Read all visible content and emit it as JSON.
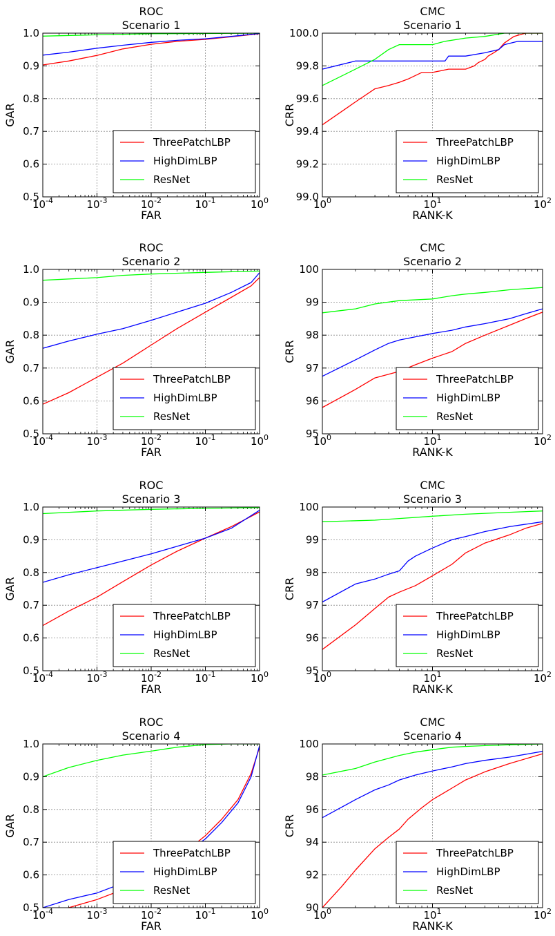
{
  "figure": {
    "colors": {
      "ThreePatchLBP": "#ff0000",
      "HighDimLBP": "#0000ff",
      "ResNet": "#00ff00",
      "grid": "#888888",
      "axes": "#000000"
    }
  },
  "chart_data": [
    {
      "id": "roc1",
      "type": "line",
      "panel": "ROC Scenario 1",
      "title": [
        "ROC",
        "Scenario 1"
      ],
      "xlabel": "FAR",
      "ylabel": "GAR",
      "xscale": "log",
      "xlim": [
        0.0001,
        1
      ],
      "ylim": [
        0.5,
        1.0
      ],
      "xtick_labels": [
        [
          "10",
          "-4"
        ],
        [
          "10",
          "-3"
        ],
        [
          "10",
          "-2"
        ],
        [
          "10",
          "-1"
        ],
        [
          "10",
          "0"
        ]
      ],
      "ytick_labels": [
        "0.5",
        "0.6",
        "0.7",
        "0.8",
        "0.9",
        "1.0"
      ],
      "legend": {
        "position": "lower-right",
        "entries": [
          "ThreePatchLBP",
          "HighDimLBP",
          "ResNet"
        ]
      },
      "grid": true,
      "series": [
        {
          "name": "ThreePatchLBP",
          "color": "#ff0000",
          "x": [
            0.0001,
            0.0003,
            0.001,
            0.003,
            0.01,
            0.03,
            0.1,
            0.3,
            1
          ],
          "y": [
            0.903,
            0.915,
            0.932,
            0.952,
            0.966,
            0.975,
            0.981,
            0.989,
            0.998
          ]
        },
        {
          "name": "HighDimLBP",
          "color": "#0000ff",
          "x": [
            0.0001,
            0.0003,
            0.001,
            0.003,
            0.01,
            0.03,
            0.1,
            0.3,
            1
          ],
          "y": [
            0.933,
            0.942,
            0.954,
            0.963,
            0.972,
            0.978,
            0.983,
            0.99,
            0.999
          ]
        },
        {
          "name": "ResNet",
          "color": "#00ff00",
          "x": [
            0.0001,
            0.001,
            0.01,
            0.1,
            1
          ],
          "y": [
            0.991,
            0.995,
            0.998,
            0.999,
            1.0
          ]
        }
      ]
    },
    {
      "id": "cmc1",
      "type": "line",
      "panel": "CMC Scenario 1",
      "title": [
        "CMC",
        "Scenario 1"
      ],
      "xlabel": "RANK-K",
      "ylabel": "CRR",
      "xscale": "log",
      "xlim": [
        1,
        100
      ],
      "ylim": [
        99.0,
        100.0
      ],
      "xtick_labels": [
        [
          "10",
          "0"
        ],
        [
          "10",
          "1"
        ],
        [
          "10",
          "2"
        ]
      ],
      "ytick_labels": [
        "99.0",
        "99.2",
        "99.4",
        "99.6",
        "99.8",
        "100.0"
      ],
      "legend": {
        "position": "lower-right",
        "entries": [
          "ThreePatchLBP",
          "HighDimLBP",
          "ResNet"
        ]
      },
      "grid": true,
      "series": [
        {
          "name": "ThreePatchLBP",
          "color": "#ff0000",
          "x": [
            1,
            2,
            3,
            4,
            5,
            6,
            8,
            10,
            14,
            20,
            24,
            26,
            30,
            32,
            36,
            40,
            45,
            55,
            70,
            100
          ],
          "y": [
            99.44,
            99.58,
            99.66,
            99.68,
            99.7,
            99.72,
            99.76,
            99.76,
            99.78,
            99.78,
            99.8,
            99.82,
            99.84,
            99.86,
            99.88,
            99.9,
            99.94,
            99.98,
            100.0,
            100.0
          ]
        },
        {
          "name": "HighDimLBP",
          "color": "#0000ff",
          "x": [
            1,
            2,
            3,
            5,
            8,
            13,
            14,
            20,
            30,
            40,
            45,
            60,
            100
          ],
          "y": [
            99.78,
            99.83,
            99.83,
            99.83,
            99.83,
            99.83,
            99.86,
            99.86,
            99.88,
            99.9,
            99.93,
            99.95,
            99.95
          ]
        },
        {
          "name": "ResNet",
          "color": "#00ff00",
          "x": [
            1,
            2,
            3,
            4,
            5,
            10,
            13,
            20,
            30,
            45,
            100
          ],
          "y": [
            99.68,
            99.78,
            99.84,
            99.9,
            99.93,
            99.93,
            99.95,
            99.97,
            99.98,
            100.0,
            100.0
          ]
        }
      ]
    },
    {
      "id": "roc2",
      "type": "line",
      "panel": "ROC Scenario 2",
      "title": [
        "ROC",
        "Scenario 2"
      ],
      "xlabel": "FAR",
      "ylabel": "GAR",
      "xscale": "log",
      "xlim": [
        0.0001,
        1
      ],
      "ylim": [
        0.5,
        1.0
      ],
      "xtick_labels": [
        [
          "10",
          "-4"
        ],
        [
          "10",
          "-3"
        ],
        [
          "10",
          "-2"
        ],
        [
          "10",
          "-1"
        ],
        [
          "10",
          "0"
        ]
      ],
      "ytick_labels": [
        "0.5",
        "0.6",
        "0.7",
        "0.8",
        "0.9",
        "1.0"
      ],
      "legend": {
        "position": "lower-right",
        "entries": [
          "ThreePatchLBP",
          "HighDimLBP",
          "ResNet"
        ]
      },
      "grid": true,
      "series": [
        {
          "name": "ThreePatchLBP",
          "color": "#ff0000",
          "x": [
            0.0001,
            0.0003,
            0.001,
            0.003,
            0.01,
            0.03,
            0.1,
            0.3,
            0.7,
            1
          ],
          "y": [
            0.59,
            0.625,
            0.672,
            0.715,
            0.77,
            0.82,
            0.87,
            0.915,
            0.95,
            0.975
          ]
        },
        {
          "name": "HighDimLBP",
          "color": "#0000ff",
          "x": [
            0.0001,
            0.0003,
            0.001,
            0.003,
            0.01,
            0.03,
            0.1,
            0.3,
            0.7,
            1
          ],
          "y": [
            0.76,
            0.782,
            0.803,
            0.82,
            0.845,
            0.87,
            0.897,
            0.93,
            0.96,
            0.99
          ]
        },
        {
          "name": "ResNet",
          "color": "#00ff00",
          "x": [
            0.0001,
            0.001,
            0.003,
            0.01,
            0.1,
            1
          ],
          "y": [
            0.967,
            0.975,
            0.982,
            0.986,
            0.991,
            0.995
          ]
        }
      ]
    },
    {
      "id": "cmc2",
      "type": "line",
      "panel": "CMC Scenario 2",
      "title": [
        "CMC",
        "Scenario 2"
      ],
      "xlabel": "RANK-K",
      "ylabel": "CRR",
      "xscale": "log",
      "xlim": [
        1,
        100
      ],
      "ylim": [
        95,
        100
      ],
      "xtick_labels": [
        [
          "10",
          "0"
        ],
        [
          "10",
          "1"
        ],
        [
          "10",
          "2"
        ]
      ],
      "ytick_labels": [
        "95",
        "96",
        "97",
        "98",
        "99",
        "100"
      ],
      "legend": {
        "position": "lower-right",
        "entries": [
          "ThreePatchLBP",
          "HighDimLBP",
          "ResNet"
        ]
      },
      "grid": true,
      "series": [
        {
          "name": "ThreePatchLBP",
          "color": "#ff0000",
          "x": [
            1,
            2,
            3,
            5,
            7,
            10,
            15,
            20,
            30,
            50,
            70,
            100
          ],
          "y": [
            95.8,
            96.35,
            96.7,
            96.9,
            97.1,
            97.3,
            97.5,
            97.75,
            98.0,
            98.3,
            98.5,
            98.7
          ]
        },
        {
          "name": "HighDimLBP",
          "color": "#0000ff",
          "x": [
            1,
            2,
            3,
            4,
            5,
            7,
            10,
            15,
            20,
            30,
            50,
            70,
            100
          ],
          "y": [
            96.75,
            97.25,
            97.55,
            97.75,
            97.85,
            97.95,
            98.05,
            98.15,
            98.25,
            98.35,
            98.5,
            98.65,
            98.8
          ]
        },
        {
          "name": "ResNet",
          "color": "#00ff00",
          "x": [
            1,
            2,
            3,
            5,
            10,
            15,
            20,
            30,
            50,
            100
          ],
          "y": [
            98.68,
            98.8,
            98.95,
            99.05,
            99.1,
            99.2,
            99.25,
            99.3,
            99.38,
            99.45
          ]
        }
      ]
    },
    {
      "id": "roc3",
      "type": "line",
      "panel": "ROC Scenario 3",
      "title": [
        "ROC",
        "Scenario 3"
      ],
      "xlabel": "FAR",
      "ylabel": "GAR",
      "xscale": "log",
      "xlim": [
        0.0001,
        1
      ],
      "ylim": [
        0.5,
        1.0
      ],
      "xtick_labels": [
        [
          "10",
          "-4"
        ],
        [
          "10",
          "-3"
        ],
        [
          "10",
          "-2"
        ],
        [
          "10",
          "-1"
        ],
        [
          "10",
          "0"
        ]
      ],
      "ytick_labels": [
        "0.5",
        "0.6",
        "0.7",
        "0.8",
        "0.9",
        "1.0"
      ],
      "legend": {
        "position": "lower-right",
        "entries": [
          "ThreePatchLBP",
          "HighDimLBP",
          "ResNet"
        ]
      },
      "grid": true,
      "series": [
        {
          "name": "ThreePatchLBP",
          "color": "#ff0000",
          "x": [
            0.0001,
            0.0003,
            0.001,
            0.003,
            0.01,
            0.03,
            0.1,
            0.3,
            1
          ],
          "y": [
            0.638,
            0.682,
            0.725,
            0.772,
            0.823,
            0.865,
            0.905,
            0.94,
            0.985
          ]
        },
        {
          "name": "HighDimLBP",
          "color": "#0000ff",
          "x": [
            0.0001,
            0.0003,
            0.001,
            0.003,
            0.01,
            0.03,
            0.1,
            0.3,
            1
          ],
          "y": [
            0.77,
            0.793,
            0.815,
            0.835,
            0.857,
            0.88,
            0.905,
            0.935,
            0.99
          ]
        },
        {
          "name": "ResNet",
          "color": "#00ff00",
          "x": [
            0.0001,
            0.001,
            0.01,
            0.1,
            1
          ],
          "y": [
            0.98,
            0.988,
            0.993,
            0.996,
            0.998
          ]
        }
      ]
    },
    {
      "id": "cmc3",
      "type": "line",
      "panel": "CMC Scenario 3",
      "title": [
        "CMC",
        "Scenario 3"
      ],
      "xlabel": "RANK-K",
      "ylabel": "CRR",
      "xscale": "log",
      "xlim": [
        1,
        100
      ],
      "ylim": [
        95,
        100
      ],
      "xtick_labels": [
        [
          "10",
          "0"
        ],
        [
          "10",
          "1"
        ],
        [
          "10",
          "2"
        ]
      ],
      "ytick_labels": [
        "95",
        "96",
        "97",
        "98",
        "99",
        "100"
      ],
      "legend": {
        "position": "lower-right",
        "entries": [
          "ThreePatchLBP",
          "HighDimLBP",
          "ResNet"
        ]
      },
      "grid": true,
      "series": [
        {
          "name": "ThreePatchLBP",
          "color": "#ff0000",
          "x": [
            1,
            2,
            3,
            4,
            5,
            7,
            10,
            15,
            20,
            30,
            50,
            70,
            100
          ],
          "y": [
            95.65,
            96.4,
            96.9,
            97.25,
            97.4,
            97.6,
            97.9,
            98.25,
            98.6,
            98.9,
            99.15,
            99.35,
            99.5
          ]
        },
        {
          "name": "HighDimLBP",
          "color": "#0000ff",
          "x": [
            1,
            2,
            3,
            4,
            5,
            6,
            7,
            10,
            15,
            20,
            30,
            50,
            100
          ],
          "y": [
            97.1,
            97.65,
            97.8,
            97.95,
            98.05,
            98.35,
            98.5,
            98.75,
            99.0,
            99.1,
            99.25,
            99.4,
            99.55
          ]
        },
        {
          "name": "ResNet",
          "color": "#00ff00",
          "x": [
            1,
            3,
            5,
            10,
            20,
            50,
            100
          ],
          "y": [
            99.55,
            99.6,
            99.65,
            99.72,
            99.78,
            99.84,
            99.88
          ]
        }
      ]
    },
    {
      "id": "roc4",
      "type": "line",
      "panel": "ROC Scenario 4",
      "title": [
        "ROC",
        "Scenario 4"
      ],
      "xlabel": "FAR",
      "ylabel": "GAR",
      "xscale": "log",
      "xlim": [
        0.0001,
        1
      ],
      "ylim": [
        0.5,
        1.0
      ],
      "xtick_labels": [
        [
          "10",
          "-4"
        ],
        [
          "10",
          "-3"
        ],
        [
          "10",
          "-2"
        ],
        [
          "10",
          "-1"
        ],
        [
          "10",
          "0"
        ]
      ],
      "ytick_labels": [
        "0.5",
        "0.6",
        "0.7",
        "0.8",
        "0.9",
        "1.0"
      ],
      "legend": {
        "position": "lower-right",
        "entries": [
          "ThreePatchLBP",
          "HighDimLBP",
          "ResNet"
        ]
      },
      "grid": true,
      "series": [
        {
          "name": "ThreePatchLBP",
          "color": "#ff0000",
          "x": [
            0.0003,
            0.001,
            0.003,
            0.01,
            0.03,
            0.1,
            0.2,
            0.4,
            0.7,
            1
          ],
          "y": [
            0.5,
            0.525,
            0.555,
            0.6,
            0.65,
            0.72,
            0.77,
            0.83,
            0.91,
            0.99
          ]
        },
        {
          "name": "HighDimLBP",
          "color": "#0000ff",
          "x": [
            0.0001,
            0.0003,
            0.001,
            0.003,
            0.01,
            0.03,
            0.1,
            0.2,
            0.4,
            0.7,
            1
          ],
          "y": [
            0.5,
            0.525,
            0.545,
            0.575,
            0.61,
            0.65,
            0.71,
            0.76,
            0.82,
            0.9,
            0.995
          ]
        },
        {
          "name": "ResNet",
          "color": "#00ff00",
          "x": [
            0.0001,
            0.0003,
            0.001,
            0.003,
            0.01,
            0.03,
            0.1,
            0.3,
            1
          ],
          "y": [
            0.9,
            0.928,
            0.95,
            0.966,
            0.978,
            0.99,
            0.998,
            1.0,
            1.0
          ]
        }
      ]
    },
    {
      "id": "cmc4",
      "type": "line",
      "panel": "CMC Scenario 4",
      "title": [
        "CMC",
        "Scenario 4"
      ],
      "xlabel": "RANK-K",
      "ylabel": "CRR",
      "xscale": "log",
      "xlim": [
        1,
        100
      ],
      "ylim": [
        90,
        100
      ],
      "xtick_labels": [
        [
          "10",
          "0"
        ],
        [
          "10",
          "1"
        ],
        [
          "10",
          "2"
        ]
      ],
      "ytick_labels": [
        "90",
        "92",
        "94",
        "96",
        "98",
        "100"
      ],
      "legend": {
        "position": "lower-right",
        "entries": [
          "ThreePatchLBP",
          "HighDimLBP",
          "ResNet"
        ]
      },
      "grid": true,
      "series": [
        {
          "name": "ThreePatchLBP",
          "color": "#ff0000",
          "x": [
            1,
            1.5,
            2,
            3,
            4,
            5,
            6,
            8,
            10,
            15,
            20,
            30,
            50,
            100
          ],
          "y": [
            90.0,
            91.3,
            92.3,
            93.6,
            94.3,
            94.8,
            95.4,
            96.1,
            96.6,
            97.3,
            97.8,
            98.3,
            98.8,
            99.4
          ]
        },
        {
          "name": "HighDimLBP",
          "color": "#0000ff",
          "x": [
            1,
            2,
            3,
            4,
            5,
            7,
            10,
            15,
            20,
            30,
            50,
            100
          ],
          "y": [
            95.5,
            96.6,
            97.2,
            97.5,
            97.8,
            98.1,
            98.35,
            98.6,
            98.8,
            99.0,
            99.2,
            99.55
          ]
        },
        {
          "name": "ResNet",
          "color": "#00ff00",
          "x": [
            1,
            2,
            3,
            5,
            7,
            10,
            15,
            20,
            30,
            50,
            100
          ],
          "y": [
            98.1,
            98.5,
            98.9,
            99.3,
            99.5,
            99.65,
            99.8,
            99.85,
            99.9,
            99.95,
            100.0
          ]
        }
      ]
    }
  ]
}
